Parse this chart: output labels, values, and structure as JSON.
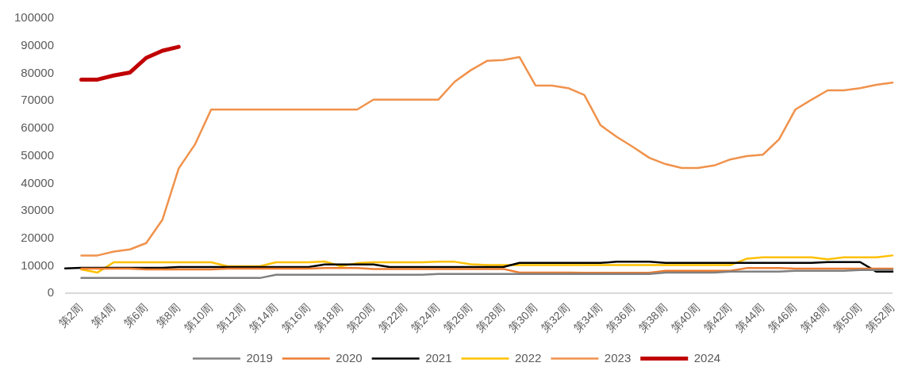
{
  "chart_data": {
    "type": "line",
    "categories": [
      null,
      "第2周",
      null,
      "第4周",
      null,
      "第6周",
      null,
      "第8周",
      null,
      "第10周",
      null,
      "第12周",
      null,
      "第14周",
      null,
      "第16周",
      null,
      "第18周",
      null,
      "第20周",
      null,
      "第22周",
      null,
      "第24周",
      null,
      "第26周",
      null,
      "第28周",
      null,
      "第30周",
      null,
      "第32周",
      null,
      "第34周",
      null,
      "第36周",
      null,
      "第38周",
      null,
      "第40周",
      null,
      "第42周",
      null,
      "第44周",
      null,
      "第46周",
      null,
      "第48周",
      null,
      "第50周",
      null,
      "第52周"
    ],
    "ylim": [
      0,
      100000
    ],
    "yticks": [
      0,
      10000,
      20000,
      30000,
      40000,
      50000,
      60000,
      70000,
      80000,
      90000,
      100000
    ],
    "grid": false,
    "legend": "bottom",
    "marker": "none",
    "line_style": "solid",
    "series": [
      {
        "name": "2019",
        "color": "#808080",
        "values": [
          null,
          5600,
          5600,
          5600,
          5600,
          5600,
          5600,
          5600,
          5600,
          5600,
          5600,
          5600,
          5600,
          6800,
          6800,
          6800,
          6800,
          6800,
          6800,
          6800,
          6800,
          6800,
          6800,
          7100,
          7100,
          7100,
          7100,
          7100,
          7100,
          7100,
          7100,
          7100,
          7100,
          7100,
          7100,
          7100,
          7100,
          7600,
          7600,
          7600,
          7600,
          7900,
          7900,
          7900,
          7900,
          8200,
          8200,
          8200,
          8200,
          8500,
          8500,
          8500
        ]
      },
      {
        "name": "2020",
        "color": "#ed7d31",
        "values": [
          null,
          9000,
          9000,
          9000,
          9000,
          8700,
          8700,
          8700,
          8700,
          8700,
          9000,
          9000,
          9000,
          9000,
          9000,
          9000,
          9200,
          9200,
          9200,
          8900,
          8900,
          8900,
          8900,
          8900,
          8900,
          8900,
          8900,
          8900,
          7600,
          7600,
          7600,
          7600,
          7500,
          7500,
          7500,
          7500,
          7500,
          8200,
          8200,
          8200,
          8200,
          8200,
          9200,
          9200,
          9200,
          9000,
          9000,
          9000,
          9000,
          9000,
          9000,
          9000
        ]
      },
      {
        "name": "2021",
        "color": "#000000",
        "values": [
          9100,
          9300,
          9300,
          9300,
          9300,
          9300,
          9300,
          9600,
          9600,
          9600,
          9600,
          9600,
          9600,
          9600,
          9600,
          9600,
          10500,
          10500,
          10500,
          10500,
          9600,
          9600,
          9600,
          9600,
          9600,
          9600,
          9600,
          9600,
          11100,
          11100,
          11100,
          11100,
          11100,
          11100,
          11500,
          11500,
          11500,
          11100,
          11100,
          11100,
          11100,
          11100,
          11100,
          11100,
          11100,
          11100,
          11100,
          11400,
          11400,
          11400,
          7900,
          7900
        ]
      },
      {
        "name": "2022",
        "color": "#ffc000",
        "values": [
          null,
          8700,
          7600,
          11300,
          11300,
          11300,
          11300,
          11300,
          11300,
          11300,
          9900,
          9900,
          9900,
          11300,
          11300,
          11300,
          11600,
          9900,
          11000,
          11300,
          11300,
          11300,
          11300,
          11500,
          11500,
          10600,
          10300,
          10300,
          10300,
          10300,
          10300,
          10300,
          10300,
          10300,
          10300,
          10300,
          10300,
          10300,
          10300,
          10300,
          10300,
          10300,
          12600,
          13100,
          13100,
          13100,
          13100,
          12400,
          13100,
          13100,
          13100,
          13800
        ]
      },
      {
        "name": "2023",
        "color": "#f0924c",
        "values": [
          null,
          13800,
          13800,
          15200,
          16000,
          18300,
          26800,
          45400,
          54100,
          66800,
          66800,
          66800,
          66800,
          66800,
          66800,
          66800,
          66800,
          66800,
          66800,
          70400,
          70400,
          70400,
          70400,
          70400,
          76900,
          81100,
          84500,
          84800,
          85900,
          75500,
          75500,
          74600,
          72100,
          61100,
          56900,
          53200,
          49300,
          47000,
          45600,
          45600,
          46500,
          48700,
          49900,
          50400,
          56000,
          66800,
          70400,
          73800,
          73800,
          74600,
          75800,
          76600
        ]
      },
      {
        "name": "2024",
        "color": "#c00000",
        "values": [
          null,
          77700,
          77700,
          79200,
          80300,
          85600,
          88200,
          89600,
          null,
          null,
          null,
          null,
          null,
          null,
          null,
          null,
          null,
          null,
          null,
          null,
          null,
          null,
          null,
          null,
          null,
          null,
          null,
          null,
          null,
          null,
          null,
          null,
          null,
          null,
          null,
          null,
          null,
          null,
          null,
          null,
          null,
          null,
          null,
          null,
          null,
          null,
          null,
          null,
          null,
          null,
          null,
          null
        ]
      }
    ]
  }
}
